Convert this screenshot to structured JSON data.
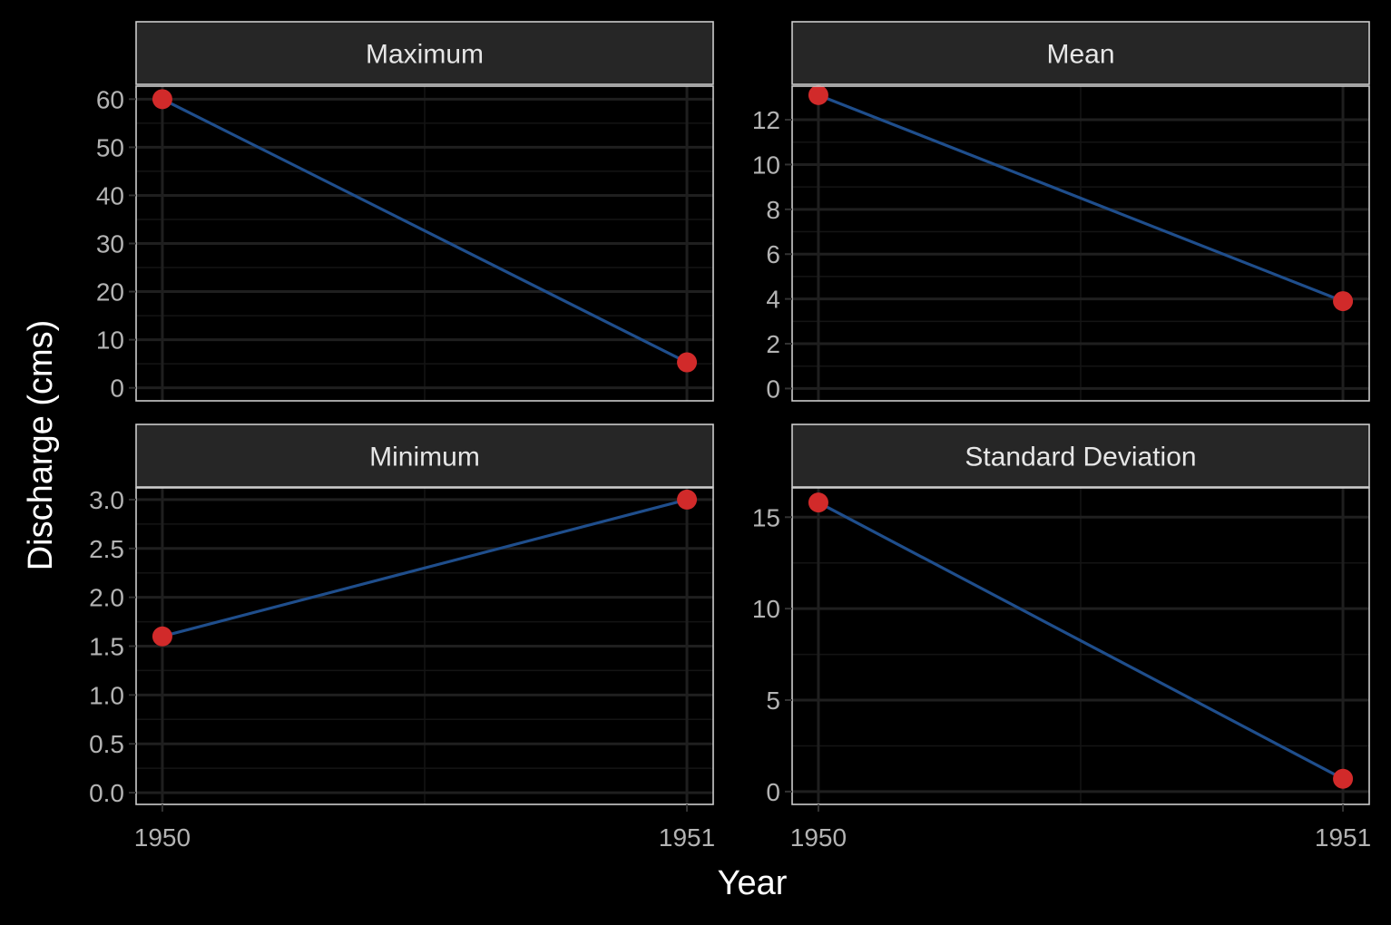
{
  "chart_data": {
    "type": "line",
    "xlabel": "Year",
    "ylabel": "Discharge (cms)",
    "colors": {
      "background": "#000000",
      "panel": "#000000",
      "strip": "#262626",
      "border": "#cccccc",
      "grid_major": "#1f1f1f",
      "grid_minor": "#141414",
      "line": "#1f4e8c",
      "point": "#d12a2a",
      "tick_text": "#b3b3b3",
      "title_text": "#ffffff"
    },
    "grid": true,
    "x": [
      1950,
      1951
    ],
    "x_ticks": [
      "1950",
      "1951"
    ],
    "panels": [
      {
        "title": "Maximum",
        "values": [
          60.0,
          5.3
        ],
        "ylim": [
          -2.7,
          62.7
        ],
        "yticks": [
          0,
          10,
          20,
          30,
          40,
          50,
          60
        ],
        "ytick_labels": [
          "0",
          "10",
          "20",
          "30",
          "40",
          "50",
          "60"
        ]
      },
      {
        "title": "Mean",
        "values": [
          13.1,
          3.9
        ],
        "ylim": [
          -0.55,
          13.5
        ],
        "yticks": [
          0,
          2,
          4,
          6,
          8,
          10,
          12
        ],
        "ytick_labels": [
          "0",
          "2",
          "4",
          "6",
          "8",
          "10",
          "12"
        ]
      },
      {
        "title": "Minimum",
        "values": [
          1.6,
          3.0
        ],
        "ylim": [
          -0.12,
          3.12
        ],
        "yticks": [
          0.0,
          0.5,
          1.0,
          1.5,
          2.0,
          2.5,
          3.0
        ],
        "ytick_labels": [
          "0.0",
          "0.5",
          "1.0",
          "1.5",
          "2.0",
          "2.5",
          "3.0"
        ]
      },
      {
        "title": "Standard Deviation",
        "values": [
          15.8,
          0.7
        ],
        "ylim": [
          -0.7,
          16.6
        ],
        "yticks": [
          0,
          5,
          10,
          15
        ],
        "ytick_labels": [
          "0",
          "5",
          "10",
          "15"
        ]
      }
    ]
  }
}
